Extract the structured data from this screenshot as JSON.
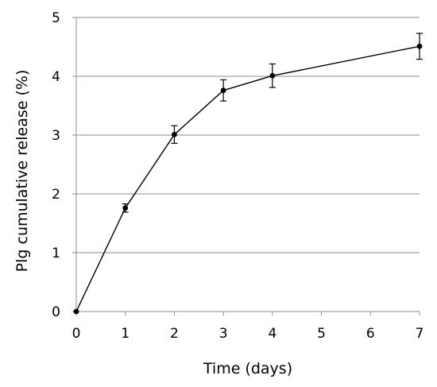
{
  "chart_data": {
    "type": "line",
    "title": "",
    "xlabel": "Time (days)",
    "ylabel": "Plg cumulative release (%)",
    "xlim": [
      0,
      7
    ],
    "ylim": [
      0,
      5
    ],
    "xticks": [
      "0",
      "1",
      "2",
      "3",
      "4",
      "5",
      "6",
      "7"
    ],
    "yticks": [
      "0",
      "1",
      "2",
      "3",
      "4",
      "5"
    ],
    "grid": "horizontal",
    "legend": "none",
    "series": [
      {
        "x": [
          0,
          1,
          2,
          3,
          4,
          7
        ],
        "y": [
          0,
          1.76,
          3.01,
          3.76,
          4.01,
          4.51
        ],
        "error": [
          0,
          0.07,
          0.15,
          0.18,
          0.2,
          0.22
        ],
        "color": "#000000",
        "marker": "circle"
      }
    ]
  }
}
